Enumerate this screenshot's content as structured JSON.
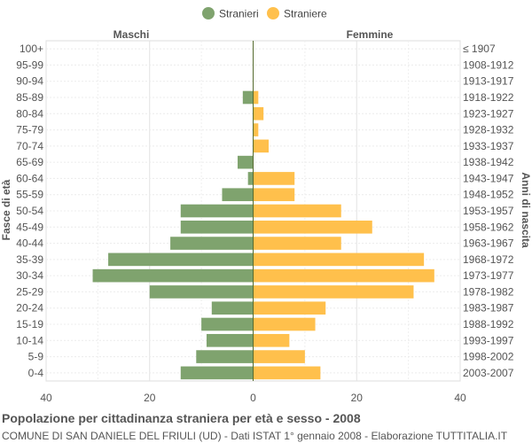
{
  "chart_data": {
    "type": "bar",
    "orientation": "horizontal-pyramid",
    "title": "Popolazione per cittadinanza straniera per età e sesso - 2008",
    "subtitle": "COMUNE DI SAN DANIELE DEL FRIULI (UD) - Dati ISTAT 1° gennaio 2008 - Elaborazione TUTTITALIA.IT",
    "ylabel_left": "Fasce di età",
    "ylabel_right": "Anni di nascita",
    "side_labels": {
      "left": "Maschi",
      "right": "Femmine"
    },
    "xlim": [
      -40,
      40
    ],
    "x_ticks": [
      {
        "value": -40,
        "label": "40"
      },
      {
        "value": -20,
        "label": "20"
      },
      {
        "value": 0,
        "label": "0"
      },
      {
        "value": 20,
        "label": "20"
      },
      {
        "value": 40,
        "label": "40"
      }
    ],
    "grid": true,
    "legend_position": "top-center",
    "categories": [
      "100+",
      "95-99",
      "90-94",
      "85-89",
      "80-84",
      "75-79",
      "70-74",
      "65-69",
      "60-64",
      "55-59",
      "50-54",
      "45-49",
      "40-44",
      "35-39",
      "30-34",
      "25-29",
      "20-24",
      "15-19",
      "10-14",
      "5-9",
      "0-4"
    ],
    "birth_years": [
      "≤ 1907",
      "1908-1912",
      "1913-1917",
      "1918-1922",
      "1923-1927",
      "1928-1932",
      "1933-1937",
      "1938-1942",
      "1943-1947",
      "1948-1952",
      "1953-1957",
      "1958-1962",
      "1963-1967",
      "1968-1972",
      "1973-1977",
      "1978-1982",
      "1983-1987",
      "1988-1992",
      "1993-1997",
      "1998-2002",
      "2003-2007"
    ],
    "series": [
      {
        "name": "Stranieri",
        "color": "#7fa36e",
        "values": [
          0,
          0,
          0,
          2,
          0,
          0,
          0,
          3,
          1,
          6,
          14,
          14,
          16,
          28,
          31,
          20,
          8,
          10,
          9,
          11,
          14
        ]
      },
      {
        "name": "Straniere",
        "color": "#ffc04c",
        "values": [
          0,
          0,
          0,
          1,
          2,
          1,
          3,
          0,
          8,
          8,
          17,
          23,
          17,
          33,
          35,
          31,
          14,
          12,
          7,
          10,
          13
        ]
      }
    ]
  }
}
